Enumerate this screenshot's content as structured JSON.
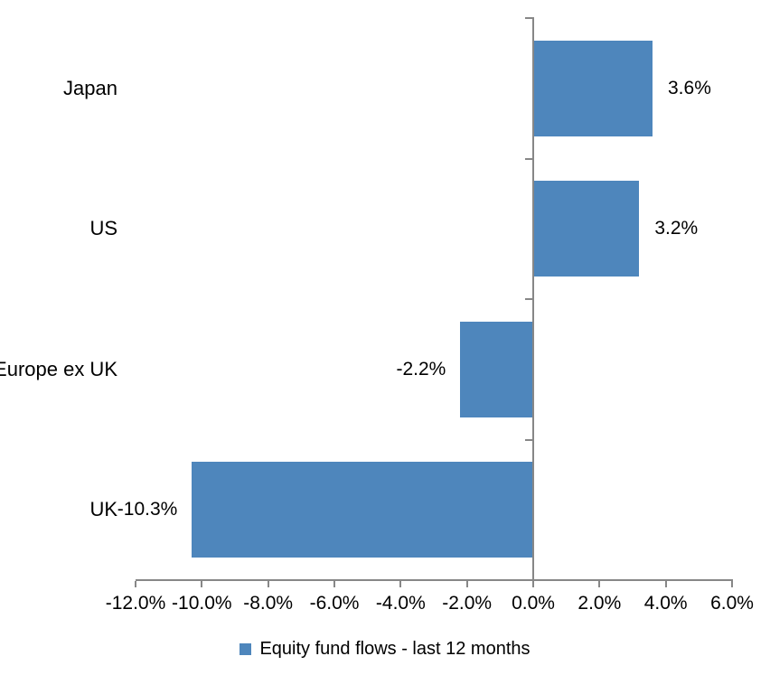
{
  "chart_data": {
    "type": "bar",
    "orientation": "horizontal",
    "title": "",
    "xlabel": "",
    "ylabel": "",
    "categories": [
      "Japan",
      "US",
      "Europe ex UK",
      "UK"
    ],
    "values": [
      3.6,
      3.2,
      -2.2,
      -10.3
    ],
    "data_labels": [
      "3.6%",
      "3.2%",
      "-2.2%",
      "-10.3%"
    ],
    "series": [
      {
        "name": "Equity fund flows - last 12 months",
        "values": [
          3.6,
          3.2,
          -2.2,
          -10.3
        ]
      }
    ],
    "xlim": [
      -12,
      6
    ],
    "x_ticks": [
      -12,
      -10,
      -8,
      -6,
      -4,
      -2,
      0,
      2,
      4,
      6
    ],
    "x_tick_labels": [
      "-12.0%",
      "-10.0%",
      "-8.0%",
      "-6.0%",
      "-4.0%",
      "-2.0%",
      "0.0%",
      "2.0%",
      "4.0%",
      "6.0%"
    ],
    "grid": false,
    "legend_position": "bottom",
    "bar_color": "#4E86BC",
    "axis_color": "#878787",
    "text_color": "#000000"
  },
  "legend": {
    "label": "Equity fund flows - last 12 months",
    "marker_color": "#4E86BC"
  }
}
